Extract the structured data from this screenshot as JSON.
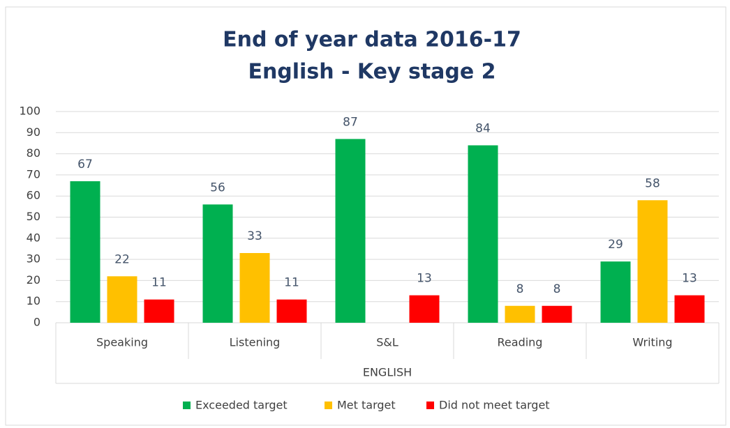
{
  "chart_data": {
    "type": "bar",
    "title": [
      "End of year data 2016-17",
      "English - Key stage 2"
    ],
    "x_label": "ENGLISH",
    "categories": [
      "Speaking",
      "Listening",
      "S&L",
      "Reading",
      "Writing"
    ],
    "series": [
      {
        "name": "Exceeded target",
        "color": "#00b050",
        "values": [
          67,
          56,
          87,
          84,
          29
        ]
      },
      {
        "name": "Met target",
        "color": "#ffc000",
        "values": [
          22,
          33,
          null,
          8,
          58
        ]
      },
      {
        "name": "Did not meet target",
        "color": "#ff0000",
        "values": [
          11,
          11,
          13,
          8,
          13
        ]
      }
    ],
    "ylim": [
      0,
      100
    ],
    "yticks": [
      0,
      10,
      20,
      30,
      40,
      50,
      60,
      70,
      80,
      90,
      100
    ],
    "grid": true,
    "legend": "bottom"
  }
}
